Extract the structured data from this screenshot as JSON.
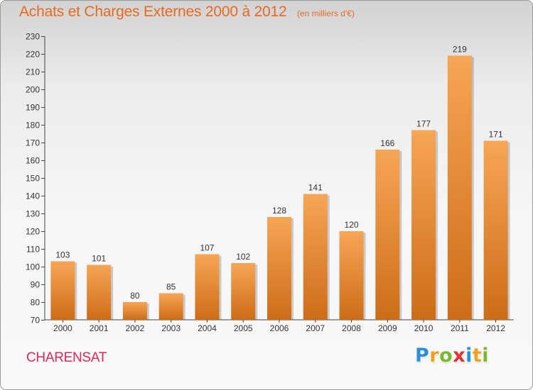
{
  "header": {
    "title": "Achats et Charges Externes 2000 à 2012",
    "unit": "(en milliers d'€)"
  },
  "commune": "CHARENSAT",
  "brand": {
    "letters": [
      {
        "char": "P",
        "color": "#2a8fd6"
      },
      {
        "char": "r",
        "color": "#f0a020"
      },
      {
        "char": "o",
        "color": "#7ab830"
      },
      {
        "char": "x",
        "color": "#e43030"
      },
      {
        "char": "i",
        "color": "#2a8fd6"
      },
      {
        "char": "t",
        "color": "#f0a020"
      },
      {
        "char": "i",
        "color": "#7ab830"
      }
    ]
  },
  "colors": {
    "accent": "#e86a22",
    "commune": "#d52a5a",
    "bar_top": "#f6a655",
    "bar_bottom": "#cd6c18",
    "axis": "#444444"
  },
  "chart_data": {
    "type": "bar",
    "title": "Achats et Charges Externes 2000 à 2012",
    "xlabel": "",
    "ylabel": "",
    "categories": [
      "2000",
      "2001",
      "2002",
      "2003",
      "2004",
      "2005",
      "2006",
      "2007",
      "2008",
      "2009",
      "2010",
      "2011",
      "2012"
    ],
    "values": [
      103,
      101,
      80,
      85,
      107,
      102,
      128,
      141,
      120,
      166,
      177,
      219,
      171
    ],
    "ylim": [
      70,
      230
    ],
    "yticks": [
      70,
      80,
      90,
      100,
      110,
      120,
      130,
      140,
      150,
      160,
      170,
      180,
      190,
      200,
      210,
      220,
      230
    ],
    "grid": false,
    "data_labels": true
  }
}
